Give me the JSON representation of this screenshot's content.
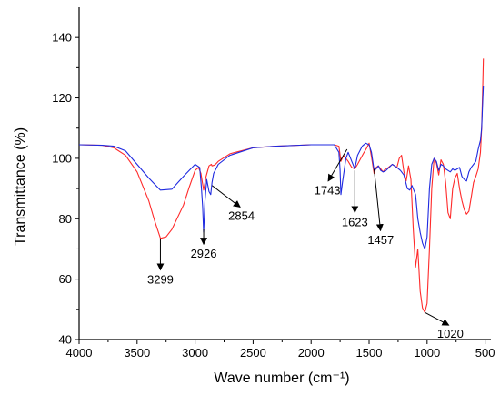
{
  "chart_data": {
    "type": "line",
    "title": "",
    "xlabel": "Wave number (cm⁻¹)",
    "ylabel": "Transmittance (%)",
    "xlim": [
      4000,
      450
    ],
    "ylim": [
      40,
      150
    ],
    "x_reversed": true,
    "x_ticks": [
      4000,
      3500,
      3000,
      2500,
      2000,
      1500,
      1000,
      500
    ],
    "y_ticks": [
      40,
      60,
      80,
      100,
      120,
      140
    ],
    "grid": false,
    "legend": "none",
    "series": [
      {
        "color": "#ff2a2a",
        "x": [
          4000,
          3800,
          3700,
          3600,
          3500,
          3400,
          3350,
          3299,
          3250,
          3200,
          3100,
          3050,
          3000,
          2970,
          2950,
          2926,
          2905,
          2880,
          2860,
          2854,
          2830,
          2800,
          2700,
          2500,
          2300,
          2000,
          1800,
          1760,
          1743,
          1720,
          1680,
          1650,
          1623,
          1600,
          1550,
          1520,
          1500,
          1480,
          1457,
          1440,
          1420,
          1400,
          1380,
          1360,
          1340,
          1300,
          1260,
          1240,
          1220,
          1200,
          1180,
          1160,
          1140,
          1120,
          1100,
          1080,
          1060,
          1040,
          1020,
          1000,
          980,
          960,
          940,
          920,
          900,
          880,
          860,
          840,
          820,
          800,
          780,
          760,
          740,
          720,
          700,
          680,
          660,
          640,
          620,
          600,
          580,
          560,
          540,
          530,
          520,
          515
        ],
        "y": [
          104.5,
          104.3,
          103.5,
          101.0,
          95.5,
          86.0,
          79.5,
          73.5,
          74.0,
          76.5,
          84.5,
          90.5,
          96.0,
          97.0,
          95.0,
          89.5,
          94.0,
          97.5,
          98.0,
          97.5,
          97.8,
          99.0,
          101.5,
          103.5,
          104.0,
          104.5,
          104.5,
          104.0,
          99.0,
          101.0,
          99.0,
          97.0,
          96.5,
          98.0,
          101.5,
          103.5,
          105.0,
          100.5,
          95.0,
          97.0,
          97.5,
          96.5,
          95.5,
          96.5,
          96.8,
          98.0,
          97.0,
          100.0,
          101.0,
          95.5,
          92.5,
          97.5,
          93.0,
          77.0,
          64.0,
          70.0,
          56.0,
          50.5,
          49.0,
          52.0,
          70.0,
          90.0,
          100.0,
          98.5,
          94.5,
          99.5,
          98.0,
          92.0,
          82.0,
          80.0,
          90.0,
          93.5,
          95.0,
          90.0,
          86.0,
          83.0,
          81.5,
          82.5,
          87.0,
          92.0,
          94.0,
          96.5,
          102.0,
          110.0,
          125.0,
          133.0
        ]
      },
      {
        "color": "#1f2ae0",
        "x": [
          4000,
          3800,
          3700,
          3600,
          3500,
          3400,
          3300,
          3200,
          3100,
          3000,
          2960,
          2945,
          2935,
          2926,
          2915,
          2900,
          2880,
          2865,
          2854,
          2840,
          2820,
          2800,
          2700,
          2500,
          2300,
          2000,
          1800,
          1760,
          1750,
          1743,
          1730,
          1700,
          1680,
          1650,
          1623,
          1600,
          1560,
          1530,
          1500,
          1480,
          1457,
          1440,
          1420,
          1400,
          1380,
          1360,
          1340,
          1300,
          1260,
          1230,
          1200,
          1170,
          1150,
          1130,
          1100,
          1080,
          1060,
          1040,
          1020,
          1000,
          980,
          960,
          940,
          920,
          900,
          880,
          860,
          840,
          820,
          800,
          780,
          760,
          740,
          720,
          700,
          680,
          660,
          640,
          620,
          600,
          580,
          560,
          540,
          530,
          520,
          515
        ],
        "y": [
          104.5,
          104.3,
          104.0,
          102.5,
          98.0,
          93.5,
          89.5,
          89.8,
          94.0,
          98.0,
          97.0,
          90.0,
          84.0,
          75.5,
          86.0,
          93.0,
          89.0,
          88.0,
          92.0,
          95.0,
          96.5,
          98.0,
          101.0,
          103.5,
          104.0,
          104.5,
          104.5,
          102.0,
          96.0,
          88.0,
          92.0,
          100.0,
          102.0,
          99.0,
          96.5,
          101.0,
          104.0,
          105.0,
          104.5,
          102.0,
          96.0,
          96.5,
          97.5,
          96.0,
          95.5,
          95.8,
          96.5,
          98.0,
          97.0,
          96.0,
          94.5,
          90.0,
          89.5,
          91.0,
          88.0,
          80.0,
          75.5,
          72.0,
          70.0,
          74.0,
          90.0,
          98.0,
          100.0,
          99.0,
          96.0,
          98.0,
          97.5,
          96.5,
          96.0,
          95.5,
          96.5,
          96.0,
          96.5,
          97.0,
          94.0,
          93.0,
          92.5,
          95.5,
          97.0,
          98.0,
          99.0,
          103.0,
          106.0,
          110.0,
          120.0,
          124.0
        ]
      }
    ],
    "annotations": [
      {
        "label": "3299",
        "point": [
          3299,
          73.5
        ],
        "text_at": [
          3299,
          62.5
        ]
      },
      {
        "label": "2926",
        "point": [
          2926,
          76.5
        ],
        "text_at": [
          2926,
          71.0
        ]
      },
      {
        "label": "2854",
        "point": [
          2854,
          91.0
        ],
        "text_at": [
          2600,
          83.5
        ]
      },
      {
        "label": "1743",
        "point": [
          1690,
          103.0
        ],
        "text_at": [
          1860,
          92.0
        ]
      },
      {
        "label": "1623",
        "point": [
          1623,
          96.0
        ],
        "text_at": [
          1623,
          81.5
        ]
      },
      {
        "label": "1457",
        "point": [
          1457,
          96.5
        ],
        "text_at": [
          1400,
          75.5
        ]
      },
      {
        "label": "1020",
        "point": [
          1020,
          49.0
        ],
        "text_at": [
          800,
          44.5
        ]
      }
    ]
  }
}
